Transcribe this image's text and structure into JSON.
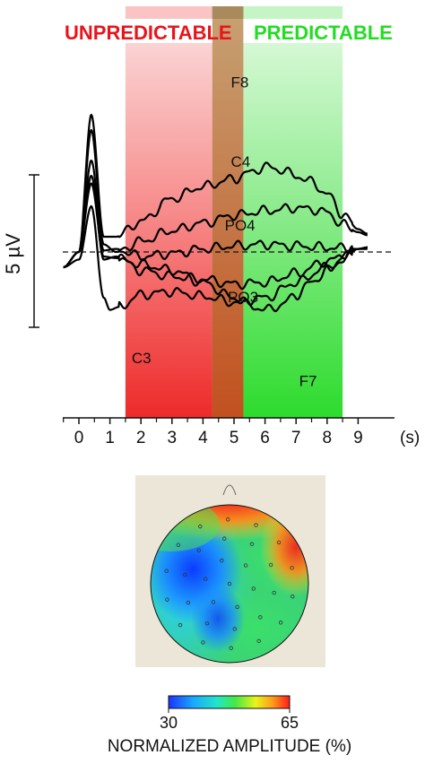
{
  "chart_data": [
    {
      "type": "line",
      "x_unit": "(s)",
      "xlim": [
        -0.5,
        9.3
      ],
      "x_ticks": [
        "0",
        "1",
        "2",
        "3",
        "4",
        "5",
        "6",
        "7",
        "8",
        "9"
      ],
      "scale_bar_label": "5 µV",
      "periods": [
        {
          "label": "UNPREDICTABLE",
          "start": 1.5,
          "end": 5.3,
          "color": "#ee2a2a"
        },
        {
          "label": "PREDICTABLE",
          "start": 4.3,
          "end": 8.5,
          "color": "#2ddb2d"
        }
      ],
      "overlap_period": {
        "start": 4.3,
        "end": 5.3,
        "color": "#b8652a"
      },
      "baseline": "dashed",
      "series": [
        {
          "name": "F8",
          "values": [
            [
              -0.5,
              -1
            ],
            [
              0,
              0
            ],
            [
              0.4,
              9
            ],
            [
              0.8,
              1
            ],
            [
              1.2,
              1
            ],
            [
              2,
              2
            ],
            [
              3,
              3.5
            ],
            [
              4,
              4.3
            ],
            [
              5,
              4.8
            ],
            [
              5.5,
              5.2
            ],
            [
              6,
              5.6
            ],
            [
              6.5,
              5.4
            ],
            [
              7,
              5
            ],
            [
              7.5,
              4.6
            ],
            [
              8,
              3.8
            ],
            [
              8.5,
              2.5
            ],
            [
              9,
              1.5
            ],
            [
              9.3,
              1.2
            ]
          ]
        },
        {
          "name": "C4",
          "values": [
            [
              -0.5,
              -1
            ],
            [
              0,
              0
            ],
            [
              0.4,
              8
            ],
            [
              0.8,
              0.5
            ],
            [
              1.2,
              0
            ],
            [
              2,
              0.7
            ],
            [
              3,
              1.4
            ],
            [
              4,
              1.9
            ],
            [
              5,
              2.4
            ],
            [
              6,
              2.7
            ],
            [
              7,
              2.9
            ],
            [
              7.5,
              2.8
            ],
            [
              8,
              2.6
            ],
            [
              8.5,
              1.8
            ],
            [
              9,
              1.3
            ],
            [
              9.3,
              1.1
            ]
          ]
        },
        {
          "name": "PO4",
          "values": [
            [
              -0.5,
              -1
            ],
            [
              0,
              0
            ],
            [
              0.4,
              6
            ],
            [
              0.8,
              0.1
            ],
            [
              1.2,
              0.2
            ],
            [
              2,
              -0.3
            ],
            [
              3,
              -0.1
            ],
            [
              4,
              0.2
            ],
            [
              5,
              0.4
            ],
            [
              6,
              0.5
            ],
            [
              7,
              0.4
            ],
            [
              8,
              0.3
            ],
            [
              9,
              0.2
            ],
            [
              9.3,
              0.2
            ]
          ]
        },
        {
          "name": "PO3",
          "values": [
            [
              -0.5,
              -1
            ],
            [
              0,
              0
            ],
            [
              0.4,
              5
            ],
            [
              0.8,
              -0.5
            ],
            [
              1.2,
              -0.3
            ],
            [
              2,
              -1.2
            ],
            [
              3,
              -1.6
            ],
            [
              4,
              -1.8
            ],
            [
              5,
              -2.1
            ],
            [
              6,
              -2
            ],
            [
              7,
              -1.4
            ],
            [
              8,
              -0.6
            ],
            [
              9,
              0.2
            ],
            [
              9.3,
              0.3
            ]
          ]
        },
        {
          "name": "F7",
          "values": [
            [
              -0.5,
              -1
            ],
            [
              0,
              0
            ],
            [
              0.4,
              4.5
            ],
            [
              0.8,
              -0.3
            ],
            [
              1.2,
              -0.4
            ],
            [
              2,
              -0.8
            ],
            [
              3,
              -1.2
            ],
            [
              4,
              -2
            ],
            [
              5,
              -3
            ],
            [
              5.5,
              -3.5
            ],
            [
              6,
              -3.8
            ],
            [
              6.5,
              -3.5
            ],
            [
              7,
              -2.8
            ],
            [
              7.5,
              -2
            ],
            [
              8,
              -1.2
            ],
            [
              8.5,
              -0.5
            ],
            [
              9,
              0.2
            ],
            [
              9.3,
              0.3
            ]
          ]
        },
        {
          "name": "C3",
          "values": [
            [
              -0.5,
              -1
            ],
            [
              0,
              -0.5
            ],
            [
              0.4,
              3
            ],
            [
              0.8,
              -3
            ],
            [
              1,
              -3.8
            ],
            [
              1.3,
              -3.6
            ],
            [
              2,
              -2.8
            ],
            [
              3,
              -2.6
            ],
            [
              4,
              -2.9
            ],
            [
              5,
              -3.3
            ],
            [
              6,
              -3
            ],
            [
              7,
              -2
            ],
            [
              8,
              -1
            ],
            [
              9,
              0.2
            ],
            [
              9.3,
              0.3
            ]
          ]
        }
      ]
    },
    {
      "type": "heatmap",
      "colorbar": {
        "min": "30",
        "max": "65",
        "label": "NORMALIZED AMPLITUDE (%)"
      }
    }
  ]
}
